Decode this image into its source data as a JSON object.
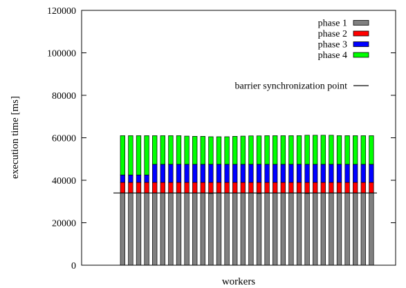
{
  "chart_data": {
    "type": "bar",
    "stacked": true,
    "xlabel": "workers",
    "ylabel": "execution time [ms]",
    "ylim": [
      0,
      120000
    ],
    "yticks": [
      "0",
      "20000",
      "40000",
      "60000",
      "80000",
      "100000",
      "120000"
    ],
    "x_tick_labels_shown": false,
    "grid": false,
    "legend_position": "top-right",
    "worker_count": 32,
    "series": [
      {
        "name": "phase 1",
        "color": "#808080",
        "values": [
          34000,
          34000,
          34000,
          34000,
          34000,
          34000,
          34000,
          34000,
          34000,
          34000,
          34000,
          33800,
          34000,
          34000,
          34000,
          34000,
          34000,
          33800,
          34000,
          34000,
          34000,
          34000,
          34000,
          33800,
          34000,
          34000,
          34000,
          34000,
          34000,
          34000,
          34000,
          34000
        ]
      },
      {
        "name": "phase 2",
        "color": "#ff0000",
        "values": [
          5000,
          5000,
          5000,
          5000,
          5000,
          5000,
          5000,
          5000,
          5000,
          5000,
          5000,
          5200,
          5000,
          5000,
          5000,
          5000,
          5000,
          5200,
          5000,
          5000,
          5000,
          5000,
          5000,
          5200,
          5000,
          5000,
          5000,
          5000,
          5000,
          5000,
          5000,
          5000
        ]
      },
      {
        "name": "phase 3",
        "color": "#0000ff",
        "values": [
          3500,
          3500,
          3500,
          3500,
          8500,
          8500,
          8500,
          8500,
          8500,
          8500,
          8500,
          8500,
          8500,
          8500,
          8500,
          8500,
          8500,
          8500,
          8500,
          8500,
          8500,
          8500,
          8500,
          8500,
          8500,
          8500,
          8500,
          8500,
          8500,
          8500,
          8500,
          8500
        ]
      },
      {
        "name": "phase 4",
        "color": "#00ff00",
        "values": [
          18500,
          18500,
          18500,
          18500,
          13500,
          13500,
          13500,
          13500,
          13300,
          13200,
          13200,
          13000,
          13000,
          13000,
          13200,
          13300,
          13400,
          13400,
          13500,
          13500,
          13500,
          13500,
          13500,
          13700,
          13700,
          13700,
          13700,
          13500,
          13500,
          13500,
          13500,
          13500
        ]
      }
    ],
    "barrier": {
      "name": "barrier synchronization point",
      "value": 34000,
      "color": "#000000"
    }
  }
}
